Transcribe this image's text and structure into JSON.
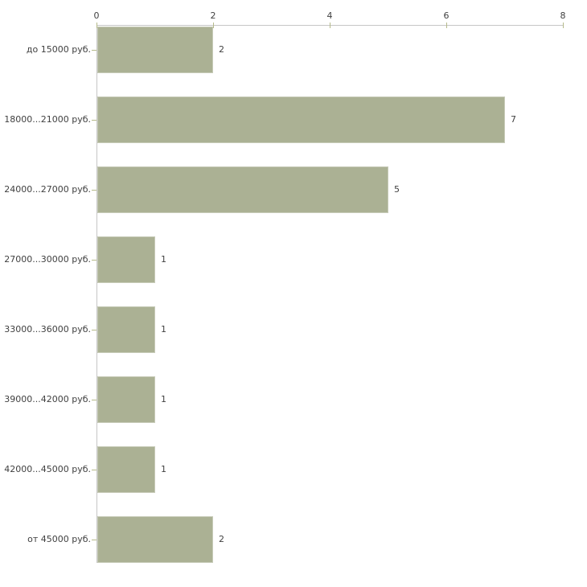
{
  "chart_data": {
    "type": "bar",
    "orientation": "horizontal",
    "title": "",
    "xlabel": "",
    "ylabel": "",
    "categories": [
      "до 15000 руб.",
      "18000...21000 руб.",
      "24000...27000 руб.",
      "27000...30000 руб.",
      "33000...36000 руб.",
      "39000...42000 руб.",
      "42000...45000 руб.",
      "от 45000 руб."
    ],
    "values": [
      2,
      7,
      5,
      1,
      1,
      1,
      1,
      2
    ],
    "value_labels": [
      "2",
      "7",
      "5",
      "1",
      "1",
      "1",
      "1",
      "2"
    ],
    "x_ticks": [
      0,
      2,
      4,
      6,
      8
    ],
    "xlim": [
      0,
      8
    ],
    "axis_position": "top",
    "grid": false,
    "legend": "none",
    "colors": {
      "bar_fill": "#abb194",
      "bar_border": "#c7cbb8",
      "axis_line": "#c6c6c6",
      "tick_mark": "#b5ba8a",
      "text": "#404040",
      "background": "#ffffff"
    }
  }
}
